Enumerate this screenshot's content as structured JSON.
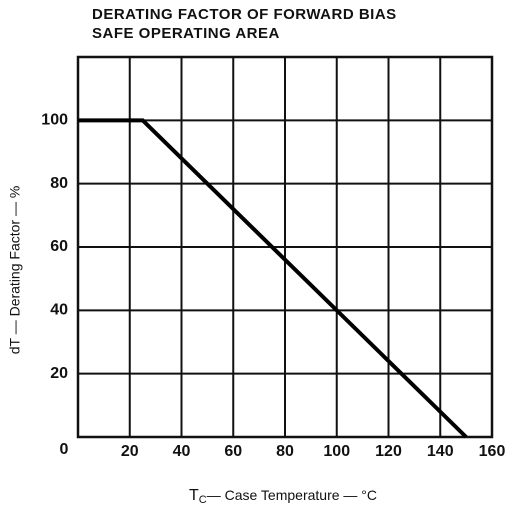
{
  "chart_data": {
    "type": "line",
    "title": [
      "DERATING FACTOR OF FORWARD BIAS",
      "SAFE OPERATING AREA"
    ],
    "xlabel": {
      "main": "T",
      "sub": "C",
      "rest": "— Case Temperature — °C"
    },
    "ylabel": "dT — Derating Factor — %",
    "series": [
      {
        "color": "#000000",
        "x": [
          0,
          25,
          150
        ],
        "values": [
          100,
          100,
          0
        ]
      }
    ],
    "xlim": [
      0,
      160
    ],
    "xticks": [
      20,
      40,
      60,
      80,
      100,
      120,
      140,
      160
    ],
    "ylim": [
      0,
      120
    ],
    "yticks": [
      0,
      20,
      40,
      60,
      80,
      100
    ],
    "grid": true
  }
}
